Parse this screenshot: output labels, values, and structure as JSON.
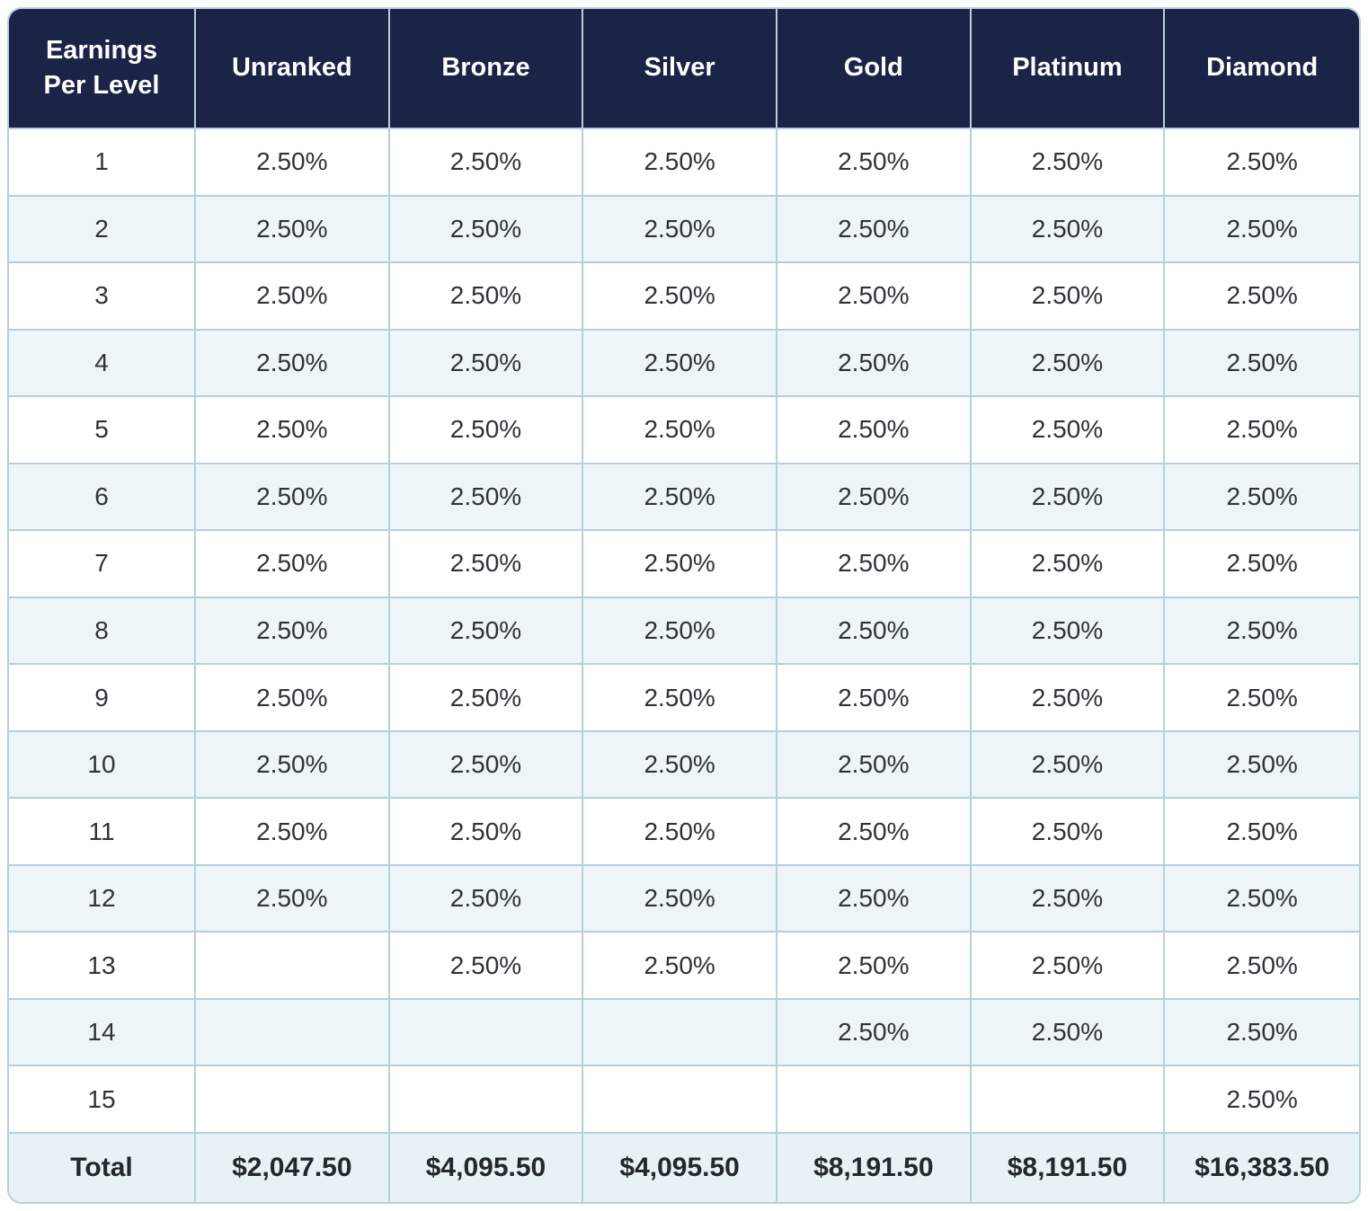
{
  "chart_data": {
    "type": "table",
    "title": "Earnings Per Level",
    "header": {
      "corner": "Earnings Per Level",
      "ranks": [
        "Unranked",
        "Bronze",
        "Silver",
        "Gold",
        "Platinum",
        "Diamond"
      ]
    },
    "levels": [
      {
        "level": "1",
        "values": [
          "2.50%",
          "2.50%",
          "2.50%",
          "2.50%",
          "2.50%",
          "2.50%"
        ]
      },
      {
        "level": "2",
        "values": [
          "2.50%",
          "2.50%",
          "2.50%",
          "2.50%",
          "2.50%",
          "2.50%"
        ]
      },
      {
        "level": "3",
        "values": [
          "2.50%",
          "2.50%",
          "2.50%",
          "2.50%",
          "2.50%",
          "2.50%"
        ]
      },
      {
        "level": "4",
        "values": [
          "2.50%",
          "2.50%",
          "2.50%",
          "2.50%",
          "2.50%",
          "2.50%"
        ]
      },
      {
        "level": "5",
        "values": [
          "2.50%",
          "2.50%",
          "2.50%",
          "2.50%",
          "2.50%",
          "2.50%"
        ]
      },
      {
        "level": "6",
        "values": [
          "2.50%",
          "2.50%",
          "2.50%",
          "2.50%",
          "2.50%",
          "2.50%"
        ]
      },
      {
        "level": "7",
        "values": [
          "2.50%",
          "2.50%",
          "2.50%",
          "2.50%",
          "2.50%",
          "2.50%"
        ]
      },
      {
        "level": "8",
        "values": [
          "2.50%",
          "2.50%",
          "2.50%",
          "2.50%",
          "2.50%",
          "2.50%"
        ]
      },
      {
        "level": "9",
        "values": [
          "2.50%",
          "2.50%",
          "2.50%",
          "2.50%",
          "2.50%",
          "2.50%"
        ]
      },
      {
        "level": "10",
        "values": [
          "2.50%",
          "2.50%",
          "2.50%",
          "2.50%",
          "2.50%",
          "2.50%"
        ]
      },
      {
        "level": "11",
        "values": [
          "2.50%",
          "2.50%",
          "2.50%",
          "2.50%",
          "2.50%",
          "2.50%"
        ]
      },
      {
        "level": "12",
        "values": [
          "2.50%",
          "2.50%",
          "2.50%",
          "2.50%",
          "2.50%",
          "2.50%"
        ]
      },
      {
        "level": "13",
        "values": [
          "",
          "2.50%",
          "2.50%",
          "2.50%",
          "2.50%",
          "2.50%"
        ]
      },
      {
        "level": "14",
        "values": [
          "",
          "",
          "",
          "2.50%",
          "2.50%",
          "2.50%"
        ]
      },
      {
        "level": "15",
        "values": [
          "",
          "",
          "",
          "",
          "",
          "2.50%"
        ]
      }
    ],
    "total": {
      "label": "Total",
      "values": [
        "$2,047.50",
        "$4,095.50",
        "$4,095.50",
        "$8,191.50",
        "$8,191.50",
        "$16,383.50"
      ]
    }
  },
  "colors": {
    "header_bg": "#1b2347",
    "header_text": "#ffffff",
    "border": "#b5d0da",
    "row_stripe_bg": "#edf5f8",
    "total_row_bg": "#e8f2f6",
    "body_text": "#2f3337",
    "total_text": "#24272b"
  }
}
